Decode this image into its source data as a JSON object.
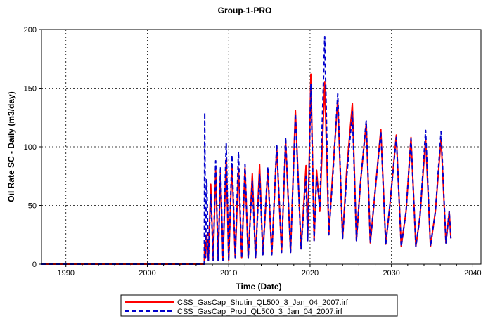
{
  "chart_data": {
    "type": "line",
    "title": "Group-1-PRO",
    "xlabel": "Time (Date)",
    "ylabel": "Oil Rate SC - Daily (m3/day)",
    "xlim": [
      1987,
      2041
    ],
    "ylim": [
      0,
      200
    ],
    "x_ticks": [
      "1990",
      "2000",
      "2010",
      "2020",
      "2030",
      "2040"
    ],
    "y_ticks": [
      "0",
      "50",
      "100",
      "150",
      "200"
    ],
    "grid": true,
    "legend_placement": "bottom",
    "colors": {
      "shutin": "#ff0000",
      "prod": "#0000cc",
      "grid": "#000000"
    },
    "series": [
      {
        "name": "CSS_GasCap_Shutin_QL500_3_Jan_04_2007.irf",
        "style": "solid",
        "points": [
          [
            1987,
            0
          ],
          [
            2007.0,
            0
          ],
          [
            2007.05,
            20
          ],
          [
            2007.15,
            5
          ],
          [
            2007.3,
            25
          ],
          [
            2007.5,
            3
          ],
          [
            2007.8,
            68
          ],
          [
            2008.1,
            3
          ],
          [
            2008.4,
            80
          ],
          [
            2008.7,
            3
          ],
          [
            2009.0,
            78
          ],
          [
            2009.3,
            3
          ],
          [
            2009.7,
            90
          ],
          [
            2010.0,
            3
          ],
          [
            2010.4,
            85
          ],
          [
            2010.8,
            5
          ],
          [
            2011.2,
            82
          ],
          [
            2011.6,
            5
          ],
          [
            2012.0,
            82
          ],
          [
            2012.4,
            5
          ],
          [
            2012.9,
            77
          ],
          [
            2013.3,
            5
          ],
          [
            2013.8,
            85
          ],
          [
            2014.2,
            8
          ],
          [
            2014.8,
            80
          ],
          [
            2015.3,
            8
          ],
          [
            2015.9,
            100
          ],
          [
            2016.5,
            10
          ],
          [
            2017.0,
            105
          ],
          [
            2017.6,
            10
          ],
          [
            2018.2,
            131
          ],
          [
            2018.9,
            13
          ],
          [
            2019.5,
            84
          ],
          [
            2019.7,
            20
          ],
          [
            2020.1,
            162
          ],
          [
            2020.5,
            20
          ],
          [
            2020.8,
            80
          ],
          [
            2021.2,
            45
          ],
          [
            2021.8,
            155
          ],
          [
            2022.3,
            25
          ],
          [
            2022.8,
            80
          ],
          [
            2023.4,
            140
          ],
          [
            2024.0,
            22
          ],
          [
            2024.5,
            80
          ],
          [
            2025.2,
            137
          ],
          [
            2025.7,
            20
          ],
          [
            2026.2,
            70
          ],
          [
            2026.9,
            120
          ],
          [
            2027.4,
            18
          ],
          [
            2027.9,
            55
          ],
          [
            2028.7,
            115
          ],
          [
            2029.3,
            17
          ],
          [
            2029.8,
            50
          ],
          [
            2030.6,
            110
          ],
          [
            2031.2,
            15
          ],
          [
            2031.8,
            45
          ],
          [
            2032.4,
            108
          ],
          [
            2033.0,
            15
          ],
          [
            2033.5,
            40
          ],
          [
            2034.2,
            107
          ],
          [
            2034.8,
            15
          ],
          [
            2035.4,
            45
          ],
          [
            2036.1,
            107
          ],
          [
            2036.7,
            18
          ],
          [
            2037.1,
            45
          ],
          [
            2037.3,
            22
          ]
        ]
      },
      {
        "name": "CSS_GasCap_Prod_QL500_3_Jan_04_2007.irf",
        "style": "dashed",
        "points": [
          [
            1987,
            0
          ],
          [
            2007.0,
            0
          ],
          [
            2007.05,
            129
          ],
          [
            2007.15,
            5
          ],
          [
            2007.3,
            72
          ],
          [
            2007.5,
            3
          ],
          [
            2007.8,
            60
          ],
          [
            2008.1,
            3
          ],
          [
            2008.4,
            88
          ],
          [
            2008.7,
            3
          ],
          [
            2009.0,
            83
          ],
          [
            2009.3,
            3
          ],
          [
            2009.7,
            103
          ],
          [
            2010.0,
            3
          ],
          [
            2010.4,
            93
          ],
          [
            2010.8,
            5
          ],
          [
            2011.2,
            96
          ],
          [
            2011.6,
            5
          ],
          [
            2012.0,
            85
          ],
          [
            2012.4,
            5
          ],
          [
            2012.9,
            71
          ],
          [
            2013.3,
            5
          ],
          [
            2013.8,
            77
          ],
          [
            2014.2,
            8
          ],
          [
            2014.8,
            83
          ],
          [
            2015.3,
            8
          ],
          [
            2015.9,
            102
          ],
          [
            2016.5,
            10
          ],
          [
            2017.0,
            108
          ],
          [
            2017.6,
            10
          ],
          [
            2018.2,
            128
          ],
          [
            2018.9,
            13
          ],
          [
            2019.5,
            75
          ],
          [
            2019.7,
            20
          ],
          [
            2020.1,
            154
          ],
          [
            2020.5,
            20
          ],
          [
            2020.8,
            74
          ],
          [
            2021.2,
            48
          ],
          [
            2021.8,
            194
          ],
          [
            2022.3,
            25
          ],
          [
            2022.8,
            76
          ],
          [
            2023.4,
            145
          ],
          [
            2024.0,
            22
          ],
          [
            2024.5,
            74
          ],
          [
            2025.2,
            130
          ],
          [
            2025.7,
            20
          ],
          [
            2026.2,
            70
          ],
          [
            2026.9,
            122
          ],
          [
            2027.4,
            18
          ],
          [
            2027.9,
            55
          ],
          [
            2028.7,
            113
          ],
          [
            2029.3,
            17
          ],
          [
            2029.8,
            50
          ],
          [
            2030.6,
            108
          ],
          [
            2031.2,
            15
          ],
          [
            2031.8,
            45
          ],
          [
            2032.4,
            107
          ],
          [
            2033.0,
            15
          ],
          [
            2033.5,
            40
          ],
          [
            2034.2,
            114
          ],
          [
            2034.8,
            15
          ],
          [
            2035.4,
            45
          ],
          [
            2036.1,
            113
          ],
          [
            2036.7,
            18
          ],
          [
            2037.1,
            45
          ],
          [
            2037.3,
            22
          ]
        ]
      }
    ]
  }
}
